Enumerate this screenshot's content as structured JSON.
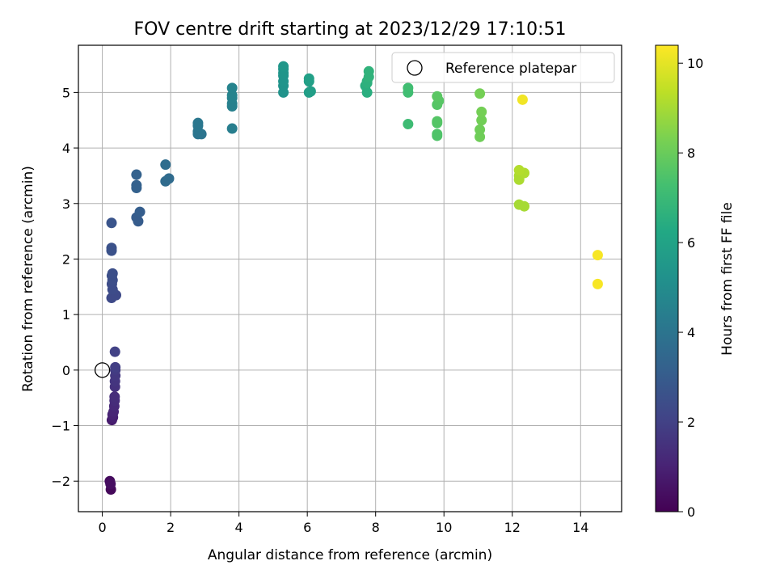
{
  "chart_data": {
    "type": "scatter",
    "title": "FOV centre drift starting at 2023/12/29 17:10:51",
    "xlabel": "Angular distance from reference (arcmin)",
    "ylabel": "Rotation from reference (arcmin)",
    "xlim": [
      -0.7,
      15.2
    ],
    "ylim": [
      -2.55,
      5.85
    ],
    "xticks": [
      "0",
      "2",
      "4",
      "6",
      "8",
      "10",
      "12",
      "14"
    ],
    "yticks": [
      "−2",
      "−1",
      "0",
      "1",
      "2",
      "3",
      "4",
      "5"
    ],
    "grid": true,
    "legend": {
      "label": "Reference platepar",
      "placement": "top-right"
    },
    "reference_point": {
      "x": 0,
      "y": 0
    },
    "colorbar": {
      "label": "Hours from first FF file",
      "colormap": "viridis",
      "range": [
        0,
        10.4
      ],
      "ticks": [
        "0",
        "2",
        "4",
        "6",
        "8",
        "10"
      ]
    },
    "points": [
      {
        "x": 0.25,
        "y": -2.15,
        "h": 0.2
      },
      {
        "x": 0.22,
        "y": -2.0,
        "h": 0.3
      },
      {
        "x": 0.24,
        "y": -2.05,
        "h": 0.4
      },
      {
        "x": 0.28,
        "y": -0.9,
        "h": 0.8
      },
      {
        "x": 0.31,
        "y": -0.85,
        "h": 0.9
      },
      {
        "x": 0.3,
        "y": -0.8,
        "h": 1.0
      },
      {
        "x": 0.33,
        "y": -0.75,
        "h": 1.1
      },
      {
        "x": 0.35,
        "y": -0.65,
        "h": 1.2
      },
      {
        "x": 0.36,
        "y": -0.55,
        "h": 1.3
      },
      {
        "x": 0.36,
        "y": -0.48,
        "h": 1.35
      },
      {
        "x": 0.37,
        "y": -0.3,
        "h": 1.5
      },
      {
        "x": 0.37,
        "y": -0.2,
        "h": 1.6
      },
      {
        "x": 0.38,
        "y": -0.1,
        "h": 1.7
      },
      {
        "x": 0.38,
        "y": 0.0,
        "h": 1.8
      },
      {
        "x": 0.38,
        "y": 0.05,
        "h": 1.9
      },
      {
        "x": 0.37,
        "y": 0.33,
        "h": 2.0
      },
      {
        "x": 0.27,
        "y": 1.3,
        "h": 2.3
      },
      {
        "x": 0.4,
        "y": 1.35,
        "h": 2.3
      },
      {
        "x": 0.3,
        "y": 1.45,
        "h": 2.4
      },
      {
        "x": 0.28,
        "y": 1.55,
        "h": 2.4
      },
      {
        "x": 0.3,
        "y": 1.62,
        "h": 2.45
      },
      {
        "x": 0.28,
        "y": 1.7,
        "h": 2.5
      },
      {
        "x": 0.3,
        "y": 1.74,
        "h": 2.5
      },
      {
        "x": 0.27,
        "y": 2.15,
        "h": 2.6
      },
      {
        "x": 0.27,
        "y": 2.2,
        "h": 2.6
      },
      {
        "x": 0.27,
        "y": 2.65,
        "h": 2.7
      },
      {
        "x": 1.05,
        "y": 2.68,
        "h": 3.0
      },
      {
        "x": 1.0,
        "y": 2.75,
        "h": 3.0
      },
      {
        "x": 1.1,
        "y": 2.85,
        "h": 3.1
      },
      {
        "x": 1.0,
        "y": 3.28,
        "h": 3.2
      },
      {
        "x": 1.0,
        "y": 3.33,
        "h": 3.2
      },
      {
        "x": 1.0,
        "y": 3.52,
        "h": 3.25
      },
      {
        "x": 1.85,
        "y": 3.4,
        "h": 3.6
      },
      {
        "x": 1.95,
        "y": 3.45,
        "h": 3.6
      },
      {
        "x": 1.85,
        "y": 3.7,
        "h": 3.7
      },
      {
        "x": 2.8,
        "y": 4.25,
        "h": 4.0
      },
      {
        "x": 2.9,
        "y": 4.25,
        "h": 4.0
      },
      {
        "x": 2.8,
        "y": 4.3,
        "h": 4.05
      },
      {
        "x": 2.8,
        "y": 4.4,
        "h": 4.1
      },
      {
        "x": 2.8,
        "y": 4.45,
        "h": 4.1
      },
      {
        "x": 3.8,
        "y": 4.35,
        "h": 4.4
      },
      {
        "x": 3.8,
        "y": 4.75,
        "h": 4.5
      },
      {
        "x": 3.8,
        "y": 4.8,
        "h": 4.5
      },
      {
        "x": 3.8,
        "y": 4.9,
        "h": 4.55
      },
      {
        "x": 3.8,
        "y": 4.95,
        "h": 4.6
      },
      {
        "x": 3.8,
        "y": 5.08,
        "h": 4.6
      },
      {
        "x": 5.3,
        "y": 5.0,
        "h": 5.3
      },
      {
        "x": 5.3,
        "y": 5.12,
        "h": 5.3
      },
      {
        "x": 5.3,
        "y": 5.2,
        "h": 5.35
      },
      {
        "x": 5.3,
        "y": 5.3,
        "h": 5.35
      },
      {
        "x": 5.3,
        "y": 5.35,
        "h": 5.4
      },
      {
        "x": 5.3,
        "y": 5.42,
        "h": 5.4
      },
      {
        "x": 5.3,
        "y": 5.47,
        "h": 5.45
      },
      {
        "x": 6.05,
        "y": 5.0,
        "h": 5.8
      },
      {
        "x": 6.1,
        "y": 5.02,
        "h": 5.8
      },
      {
        "x": 6.05,
        "y": 5.2,
        "h": 5.85
      },
      {
        "x": 6.05,
        "y": 5.25,
        "h": 5.9
      },
      {
        "x": 7.75,
        "y": 5.0,
        "h": 6.5
      },
      {
        "x": 7.7,
        "y": 5.12,
        "h": 6.5
      },
      {
        "x": 7.75,
        "y": 5.17,
        "h": 6.6
      },
      {
        "x": 7.75,
        "y": 5.2,
        "h": 6.6
      },
      {
        "x": 7.8,
        "y": 5.28,
        "h": 6.7
      },
      {
        "x": 7.8,
        "y": 5.38,
        "h": 6.7
      },
      {
        "x": 8.95,
        "y": 4.43,
        "h": 7.1
      },
      {
        "x": 8.95,
        "y": 5.0,
        "h": 7.2
      },
      {
        "x": 8.95,
        "y": 5.08,
        "h": 7.2
      },
      {
        "x": 9.8,
        "y": 4.22,
        "h": 7.5
      },
      {
        "x": 9.8,
        "y": 4.25,
        "h": 7.5
      },
      {
        "x": 9.8,
        "y": 4.45,
        "h": 7.55
      },
      {
        "x": 9.8,
        "y": 4.48,
        "h": 7.6
      },
      {
        "x": 9.8,
        "y": 4.78,
        "h": 7.6
      },
      {
        "x": 9.85,
        "y": 4.85,
        "h": 7.65
      },
      {
        "x": 9.8,
        "y": 4.93,
        "h": 7.7
      },
      {
        "x": 11.05,
        "y": 4.2,
        "h": 8.1
      },
      {
        "x": 11.05,
        "y": 4.33,
        "h": 8.1
      },
      {
        "x": 11.1,
        "y": 4.5,
        "h": 8.15
      },
      {
        "x": 11.1,
        "y": 4.65,
        "h": 8.2
      },
      {
        "x": 11.05,
        "y": 4.98,
        "h": 8.2
      },
      {
        "x": 12.2,
        "y": 2.98,
        "h": 9.0
      },
      {
        "x": 12.35,
        "y": 2.95,
        "h": 9.0
      },
      {
        "x": 12.2,
        "y": 3.43,
        "h": 9.1
      },
      {
        "x": 12.2,
        "y": 3.5,
        "h": 9.1
      },
      {
        "x": 12.35,
        "y": 3.55,
        "h": 9.15
      },
      {
        "x": 12.2,
        "y": 3.6,
        "h": 9.2
      },
      {
        "x": 12.3,
        "y": 4.87,
        "h": 10.2
      },
      {
        "x": 14.5,
        "y": 1.55,
        "h": 10.3
      },
      {
        "x": 14.5,
        "y": 2.07,
        "h": 10.3
      }
    ]
  }
}
